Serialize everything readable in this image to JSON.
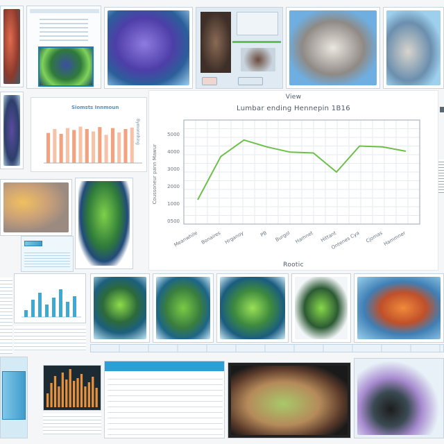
{
  "center_panel": {
    "top_label": "View",
    "chart_title": "Lumbar ending Hennepin 1B16",
    "bottom_label": "Rootic"
  },
  "left_bar_panel": {
    "title": "Siomsts Innmoun",
    "side_label": "Bymonnhing"
  },
  "chart_data": {
    "type": "line",
    "title": "Lumbar ending Hennepin 1B16",
    "ylabel": "Coussoneur pann Mawur",
    "xlabel": "",
    "categories": [
      "Meanwhile",
      "Bonaires",
      "Hrganoy",
      "PB",
      "Burgol",
      "Hamnet",
      "Hittant",
      "Ontenes Cya",
      "Cjomas",
      "Hammner"
    ],
    "y_ticks": [
      "5000",
      "4000",
      "3000",
      "2000",
      "1000",
      "0500"
    ],
    "ylim": [
      0,
      6000
    ],
    "values": [
      1400,
      3900,
      4850,
      4450,
      4150,
      4100,
      3000,
      4500,
      4450,
      4200
    ],
    "grid": true,
    "line_color": "#6cc04a"
  },
  "left_bars": {
    "values": [
      62,
      70,
      60,
      72,
      68,
      75,
      70,
      65,
      74,
      58,
      72,
      63,
      70,
      73
    ],
    "colors": [
      "#f2a27e",
      "#f6c2a8"
    ]
  },
  "small_bars": {
    "values": [
      10,
      25,
      35,
      18,
      28,
      40,
      22,
      30
    ],
    "color": "#3fa9d4"
  },
  "orange_bars": {
    "values": [
      20,
      35,
      45,
      30,
      50,
      40,
      55,
      38,
      42,
      48,
      30,
      36,
      44,
      28
    ],
    "color": "#e8903a"
  }
}
